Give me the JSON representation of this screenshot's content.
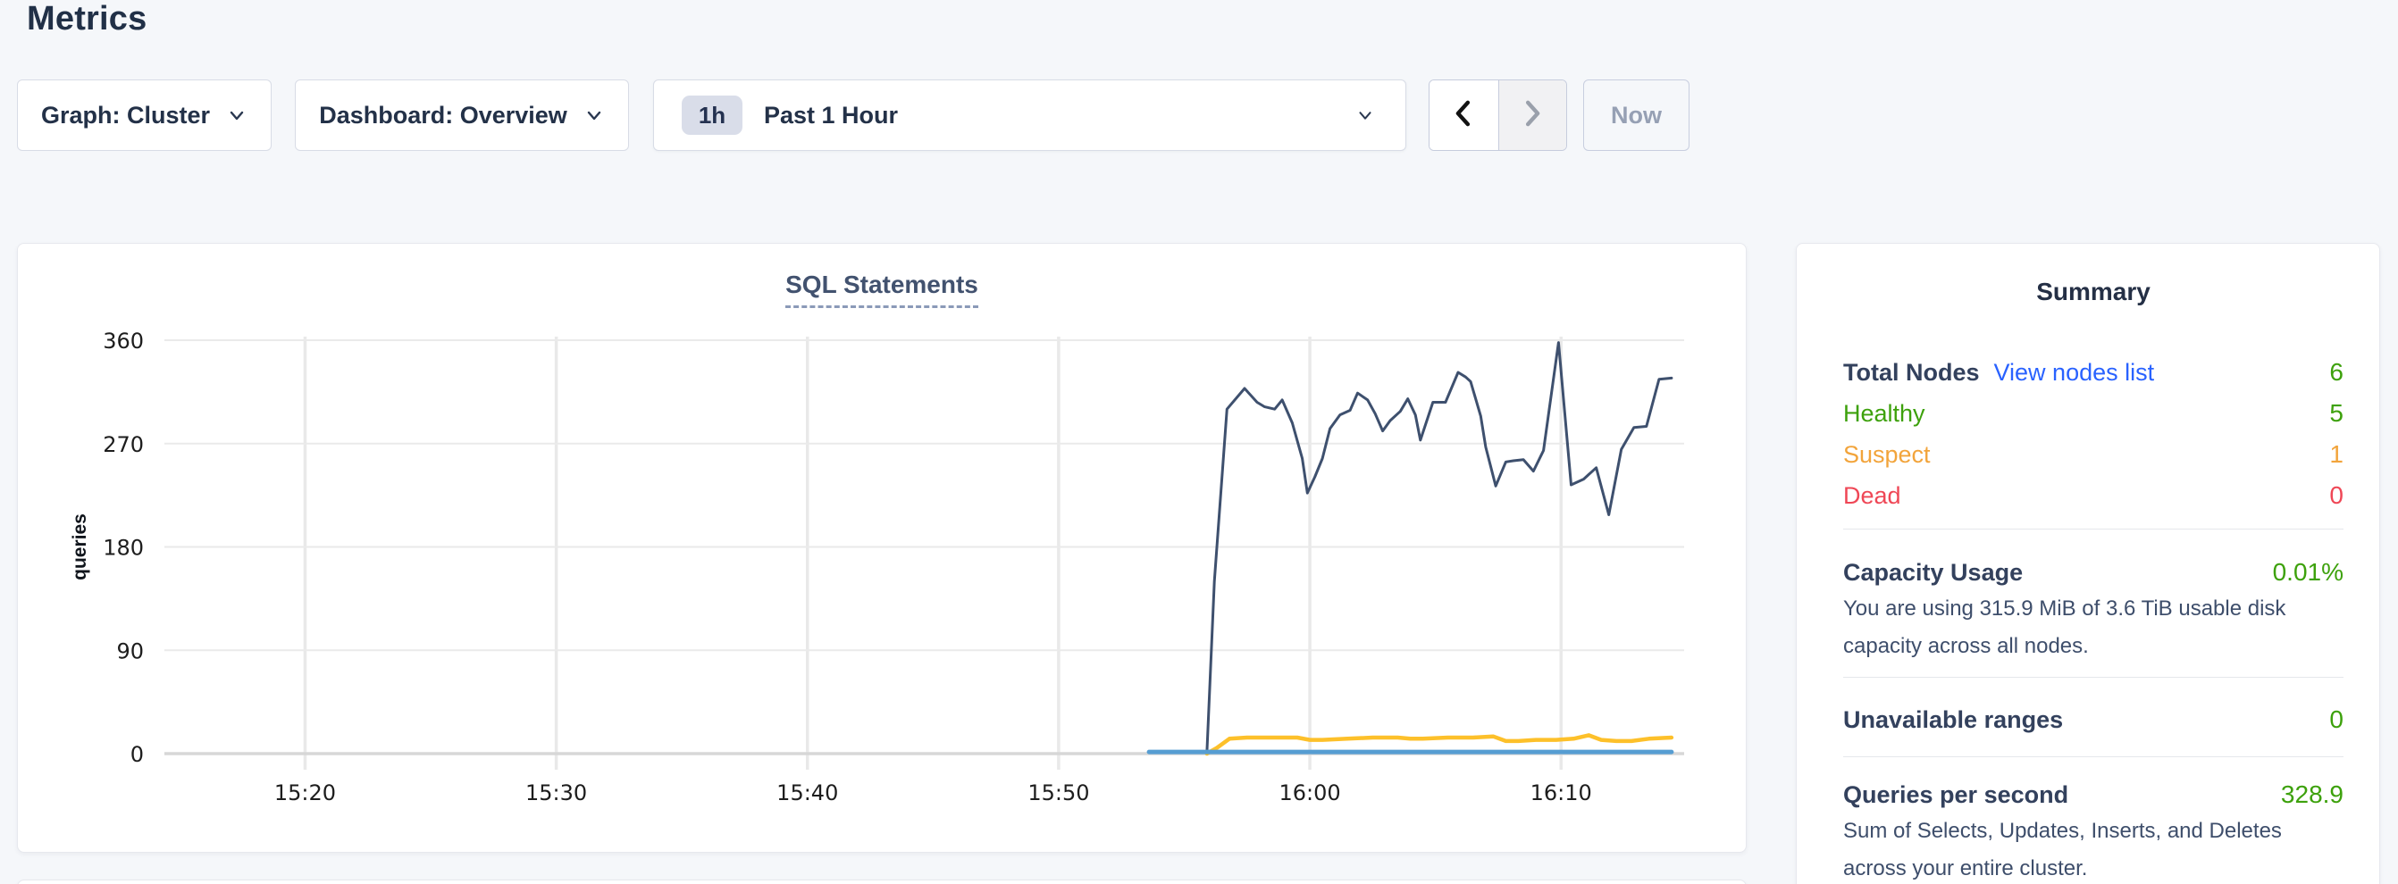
{
  "header": {
    "title": "Metrics"
  },
  "controls": {
    "graph_label": "Graph: Cluster",
    "dashboard_label": "Dashboard: Overview",
    "range_badge": "1h",
    "range_label": "Past 1 Hour",
    "now_label": "Now"
  },
  "summary": {
    "title": "Summary",
    "total_nodes": {
      "label": "Total Nodes",
      "link": "View nodes list",
      "value": "6"
    },
    "healthy": {
      "label": "Healthy",
      "value": "5"
    },
    "suspect": {
      "label": "Suspect",
      "value": "1"
    },
    "dead": {
      "label": "Dead",
      "value": "0"
    },
    "capacity": {
      "label": "Capacity Usage",
      "value": "0.01%",
      "desc": "You are using 315.9 MiB of 3.6 TiB usable disk capacity across all nodes."
    },
    "unavailable": {
      "label": "Unavailable ranges",
      "value": "0"
    },
    "qps": {
      "label": "Queries per second",
      "value": "328.9",
      "desc": "Sum of Selects, Updates, Inserts, and Deletes across your entire cluster."
    }
  },
  "colors": {
    "green": "#3da10c",
    "orange": "#f2a43b",
    "red": "#ef4756",
    "link": "#2962ff"
  },
  "chart_data": {
    "type": "line",
    "title": "SQL Statements",
    "ylabel": "queries",
    "ylim": [
      0,
      360
    ],
    "yticks": [
      0,
      90,
      180,
      270,
      360
    ],
    "x_unit": "minutes after 15:00",
    "x_range": [
      14.4,
      74.9
    ],
    "xticks": [
      {
        "t": 20,
        "label": "15:20"
      },
      {
        "t": 30,
        "label": "15:30"
      },
      {
        "t": 40,
        "label": "15:40"
      },
      {
        "t": 50,
        "label": "15:50"
      },
      {
        "t": 60,
        "label": "16:00"
      },
      {
        "t": 70,
        "label": "16:10"
      }
    ],
    "grid": true,
    "legend": "none",
    "series": [
      {
        "name": "navy",
        "color": "#3e506e",
        "width": 3,
        "points": [
          [
            55.9,
            0
          ],
          [
            56.2,
            150
          ],
          [
            56.7,
            300
          ],
          [
            57.4,
            318
          ],
          [
            57.9,
            306
          ],
          [
            58.2,
            302
          ],
          [
            58.6,
            300
          ],
          [
            58.9,
            308
          ],
          [
            59.3,
            288
          ],
          [
            59.7,
            257
          ],
          [
            59.9,
            227
          ],
          [
            60.2,
            241
          ],
          [
            60.5,
            257
          ],
          [
            60.8,
            283
          ],
          [
            61.2,
            295
          ],
          [
            61.6,
            299
          ],
          [
            61.9,
            314
          ],
          [
            62.3,
            308
          ],
          [
            62.6,
            296
          ],
          [
            62.9,
            281
          ],
          [
            63.2,
            290
          ],
          [
            63.6,
            298
          ],
          [
            63.9,
            309
          ],
          [
            64.2,
            295
          ],
          [
            64.4,
            273
          ],
          [
            64.9,
            306
          ],
          [
            65.4,
            306
          ],
          [
            65.9,
            332
          ],
          [
            66.2,
            328
          ],
          [
            66.4,
            324
          ],
          [
            66.8,
            294
          ],
          [
            67.0,
            267
          ],
          [
            67.4,
            233
          ],
          [
            67.8,
            254
          ],
          [
            68.1,
            255
          ],
          [
            68.5,
            256
          ],
          [
            68.9,
            246
          ],
          [
            69.3,
            264
          ],
          [
            69.9,
            358
          ],
          [
            70.4,
            234
          ],
          [
            70.9,
            239
          ],
          [
            71.4,
            249
          ],
          [
            71.9,
            208
          ],
          [
            72.4,
            265
          ],
          [
            72.9,
            284
          ],
          [
            73.4,
            285
          ],
          [
            73.9,
            326
          ],
          [
            74.4,
            327
          ]
        ]
      },
      {
        "name": "yellow",
        "color": "#fdc02a",
        "width": 4.5,
        "points": [
          [
            55.9,
            0
          ],
          [
            56.3,
            5
          ],
          [
            56.8,
            13
          ],
          [
            57.5,
            14
          ],
          [
            58.5,
            14
          ],
          [
            59.5,
            14
          ],
          [
            60.0,
            12
          ],
          [
            60.5,
            12
          ],
          [
            61.5,
            13
          ],
          [
            62.5,
            14
          ],
          [
            63.5,
            14
          ],
          [
            64.0,
            13
          ],
          [
            64.5,
            13
          ],
          [
            65.5,
            14
          ],
          [
            66.5,
            14
          ],
          [
            67.3,
            15
          ],
          [
            67.8,
            11
          ],
          [
            68.3,
            11
          ],
          [
            69.0,
            12
          ],
          [
            69.8,
            12
          ],
          [
            70.5,
            13
          ],
          [
            71.1,
            16
          ],
          [
            71.6,
            12
          ],
          [
            72.2,
            11
          ],
          [
            72.8,
            11
          ],
          [
            73.5,
            13
          ],
          [
            74.4,
            14
          ]
        ]
      },
      {
        "name": "blue",
        "color": "#569dd2",
        "width": 5,
        "points": [
          [
            53.6,
            1.5
          ],
          [
            74.4,
            1.5
          ]
        ]
      }
    ]
  }
}
